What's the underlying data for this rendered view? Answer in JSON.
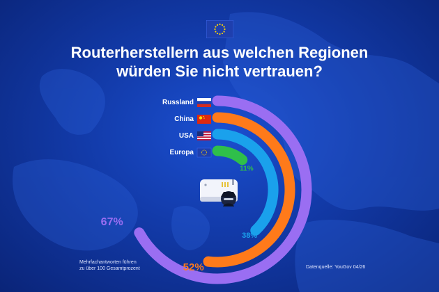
{
  "title_line1": "Routerherstellern aus welchen Regionen",
  "title_line2": "würden Sie nicht vertrauen?",
  "footnote_line1": "Mehrfachantworten führen",
  "footnote_line2": "zu über 100 Gesamtprozent",
  "source": "Datenquelle: YouGov 04/26",
  "colors": {
    "russland": "#9a6ef2",
    "china": "#ff7a1a",
    "usa": "#1aa1ec",
    "europa": "#2fbf4a",
    "track": "#2a56cf"
  },
  "icons": {
    "top_flag": "eu-flag-icon",
    "center": "router-spy-icon"
  },
  "chart_data": {
    "type": "radial-bar",
    "title": "Routerherstellern aus welchen Regionen würden Sie nicht vertrauen?",
    "unit": "%",
    "categories": [
      "Russland",
      "China",
      "USA",
      "Europa"
    ],
    "values": [
      67,
      52,
      38,
      11
    ],
    "value_labels": [
      "67%",
      "52%",
      "38%",
      "11%"
    ],
    "flags": [
      "ru-flag-icon",
      "cn-flag-icon",
      "us-flag-icon",
      "eu-flag-icon"
    ],
    "max": 100,
    "grid": false,
    "legend": "category labels with flags at top-left of rings"
  }
}
